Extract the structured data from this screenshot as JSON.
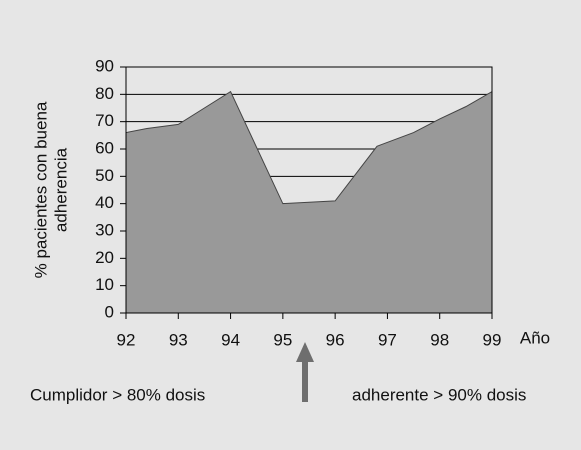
{
  "chart_data": {
    "type": "area",
    "x_label": "Año",
    "y_label": [
      "% pacientes con buena",
      "adherencia"
    ],
    "annotations": [
      "Cumplidor > 80% dosis",
      "adherente > 90% dosis"
    ],
    "x": [
      92,
      92.4,
      93,
      93.5,
      94,
      95,
      95.5,
      96,
      96.8,
      97.5,
      98,
      98.5,
      99
    ],
    "values": [
      66,
      67.5,
      69,
      75,
      81,
      40,
      40.5,
      41,
      61,
      66,
      71,
      75.5,
      81
    ],
    "color": "#999999",
    "xlim": [
      92,
      99
    ],
    "xticks": [
      92,
      93,
      94,
      95,
      96,
      97,
      98,
      99
    ],
    "ylim": [
      0,
      90
    ],
    "yticks": [
      0,
      10,
      20,
      30,
      40,
      50,
      60,
      70,
      80,
      90
    ],
    "grid": true
  }
}
